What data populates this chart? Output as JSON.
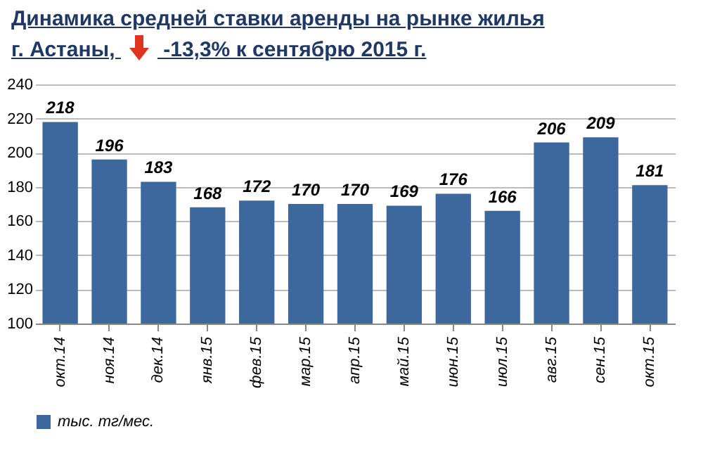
{
  "chart_data": {
    "type": "bar",
    "title": "Динамика средней  ставки аренды на рынке жилья",
    "subtitle": "г. Астаны,  -13,3%  к сентябрю 2015 г.",
    "categories": [
      "окт.14",
      "ноя.14",
      "дек.14",
      "янв.15",
      "фев.15",
      "мар.15",
      "апр.15",
      "май.15",
      "июн.15",
      "июл.15",
      "авг.15",
      "сен.15",
      "окт.15"
    ],
    "series": [
      {
        "name": "тыс. тг/мес.",
        "color": "#3d689e",
        "values": [
          218,
          196,
          183,
          168,
          172,
          170,
          170,
          169,
          176,
          166,
          206,
          209,
          181
        ]
      }
    ],
    "ylim": [
      100,
      240
    ],
    "yticks": [
      100,
      120,
      140,
      160,
      180,
      200,
      220,
      240
    ],
    "grid": "y",
    "legend": "bottom",
    "data_labels": true
  }
}
